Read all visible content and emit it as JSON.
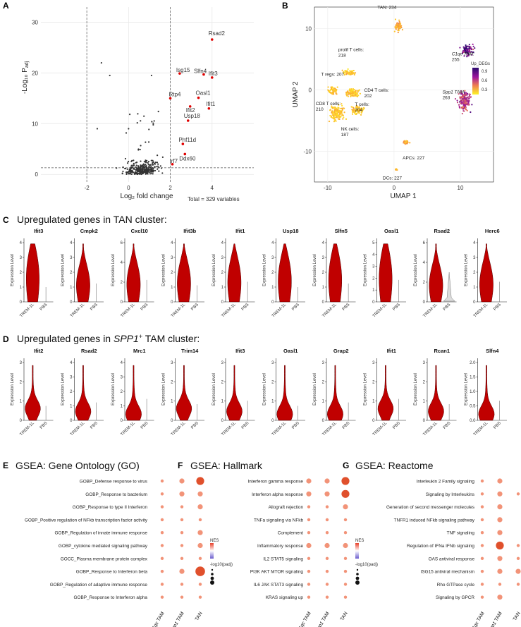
{
  "panels": {
    "A": {
      "label": "A",
      "total_note": "Total = 329 variables",
      "xlabel": "Log₂ fold change",
      "ylabel_main": "-Log₁₀ P",
      "ylabel_sub": "adj",
      "xticks": [
        "-2",
        "0",
        "2",
        "4"
      ],
      "yticks": [
        "0",
        "10",
        "20",
        "30"
      ],
      "genes": [
        {
          "name": "Rsad2",
          "x": 4.0,
          "y": 26.6
        },
        {
          "name": "Isg15",
          "x": 2.45,
          "y": 19.9
        },
        {
          "name": "Slfn4",
          "x": 3.6,
          "y": 19.7
        },
        {
          "name": "Ifit3",
          "x": 4.0,
          "y": 19.1
        },
        {
          "name": "Rtp4",
          "x": 2.0,
          "y": 15.0
        },
        {
          "name": "Oasl1",
          "x": 3.35,
          "y": 15.1
        },
        {
          "name": "Ifit2",
          "x": 2.95,
          "y": 13.4
        },
        {
          "name": "Ifit1",
          "x": 3.85,
          "y": 13.0
        },
        {
          "name": "Usp18",
          "x": 2.85,
          "y": 10.6
        },
        {
          "name": "Phf11d",
          "x": 2.6,
          "y": 6.0
        },
        {
          "name": "Ddx60",
          "x": 2.7,
          "y": 4.0
        },
        {
          "name": "Irf7",
          "x": 2.1,
          "y": 2.0
        }
      ]
    },
    "B": {
      "label": "B",
      "xlabel": "UMAP 1",
      "ylabel": "UMAP 2",
      "xticks": [
        "-10",
        "0",
        "10"
      ],
      "yticks": [
        "-10",
        "0",
        "10"
      ],
      "legend_title": "Up_DEGs",
      "legend_ticks": [
        "0.9",
        "0.6",
        "0.3"
      ],
      "clusters": [
        {
          "name": "TAN: 234"
        },
        {
          "name": "prolif T cells:\n218"
        },
        {
          "name": "T regs: 207"
        },
        {
          "name": "CD8 T cells:\n210"
        },
        {
          "name": "CD4 T cells:\n202"
        },
        {
          "name": "T cells:\n204"
        },
        {
          "name": "NK cells:\n187"
        },
        {
          "name": "C1qc TAM:\n255"
        },
        {
          "name": "Spp1 TAM:\n263"
        },
        {
          "name": "APCs: 227"
        },
        {
          "name": "DCs: 227"
        }
      ]
    },
    "C": {
      "label": "C",
      "title": "Upregulated genes in TAN cluster:",
      "ylabel": "Expression Level",
      "groups": [
        "TREM-1L",
        "PBS"
      ],
      "genes": [
        {
          "name": "Ifit3",
          "ymax": 4,
          "ticks": [
            "0",
            "1",
            "2",
            "3",
            "4"
          ]
        },
        {
          "name": "Cmpk2",
          "ymax": 4,
          "ticks": [
            "0",
            "1",
            "2",
            "3",
            "4"
          ]
        },
        {
          "name": "Cxcl10",
          "ymax": 6,
          "ticks": [
            "0",
            "2",
            "4",
            "6"
          ]
        },
        {
          "name": "Ifit3b",
          "ymax": 4,
          "ticks": [
            "0",
            "1",
            "2",
            "3",
            "4"
          ]
        },
        {
          "name": "Ifit1",
          "ymax": 4,
          "ticks": [
            "0",
            "1",
            "2",
            "3",
            "4"
          ]
        },
        {
          "name": "Usp18",
          "ymax": 4,
          "ticks": [
            "0",
            "1",
            "2",
            "3",
            "4"
          ]
        },
        {
          "name": "Slfn5",
          "ymax": 4,
          "ticks": [
            "0",
            "1",
            "2",
            "3",
            "4"
          ]
        },
        {
          "name": "Oasl1",
          "ymax": 5,
          "ticks": [
            "0",
            "1",
            "2",
            "3",
            "4",
            "5"
          ]
        },
        {
          "name": "Rsad2",
          "ymax": 6,
          "ticks": [
            "0",
            "2",
            "4",
            "6"
          ]
        },
        {
          "name": "Herc6",
          "ymax": 4,
          "ticks": [
            "0",
            "1",
            "2",
            "3",
            "4"
          ]
        }
      ]
    },
    "D": {
      "label": "D",
      "title_pre": "Upregulated genes in ",
      "title_gene": "SPP1",
      "title_sup": "+",
      "title_post": " TAM cluster:",
      "ylabel": "Expression Level",
      "groups": [
        "TREM-1L",
        "PBS"
      ],
      "genes": [
        {
          "name": "Ifit2",
          "ymax": 3,
          "ticks": [
            "0",
            "1",
            "2",
            "3"
          ]
        },
        {
          "name": "Rsad2",
          "ymax": 4,
          "ticks": [
            "0",
            "1",
            "2",
            "3",
            "4"
          ]
        },
        {
          "name": "Mrc1",
          "ymax": 4,
          "ticks": [
            "0",
            "1",
            "2",
            "3",
            "4"
          ]
        },
        {
          "name": "Trim14",
          "ymax": 3,
          "ticks": [
            "0",
            "1",
            "2",
            "3"
          ]
        },
        {
          "name": "Ifit3",
          "ymax": 3,
          "ticks": [
            "0",
            "1",
            "2",
            "3"
          ]
        },
        {
          "name": "Oasl1",
          "ymax": 3,
          "ticks": [
            "0",
            "1",
            "2",
            "3"
          ]
        },
        {
          "name": "Grap2",
          "ymax": 3,
          "ticks": [
            "0",
            "1",
            "2",
            "3"
          ]
        },
        {
          "name": "Ifit1",
          "ymax": 3,
          "ticks": [
            "0",
            "1",
            "2",
            "3"
          ]
        },
        {
          "name": "Rcan1",
          "ymax": 3,
          "ticks": [
            "0",
            "1",
            "2",
            "3"
          ]
        },
        {
          "name": "Slfn4",
          "ymax": 2,
          "ticks": [
            "0.0",
            "0.5",
            "1.0",
            "1.5",
            "2.0"
          ]
        }
      ]
    },
    "E": {
      "label": "E",
      "title": "GSEA: Gene Ontology (GO)",
      "columns": [
        "C1qc TAM",
        "Spp1 TAM",
        "TAN"
      ],
      "terms": [
        "GOBP_Defense response to virus",
        "GOBP_Response to bacterium",
        "GOBP_Response to type II Interferon",
        "GOBP_Positive regulation of NFkb transcription factor activity",
        "GOBP_Regulation of innate immune response",
        "GOBP_cytokine mediated signaling pathway",
        "GOCC_Plasma membrane protein complex",
        "GOBP_Response to Interferon beta",
        "GOBP_Regulation of adaptive immune response",
        "GOBP_Response to Interferon alpha"
      ],
      "sizes": [
        [
          1,
          2,
          4
        ],
        [
          1,
          2,
          2
        ],
        [
          1,
          1,
          2
        ],
        [
          1,
          1,
          1
        ],
        [
          1,
          1,
          2
        ],
        [
          1,
          1,
          2
        ],
        [
          1,
          1,
          1
        ],
        [
          1,
          2,
          5
        ],
        [
          1,
          1,
          1
        ],
        [
          1,
          1,
          1
        ]
      ],
      "legend_nes": "NES",
      "legend_p": "-log10(padj)"
    },
    "F": {
      "label": "F",
      "title": "GSEA: Hallmark",
      "columns": [
        "C1qc TAM",
        "Spp1 TAM",
        "TAN"
      ],
      "terms": [
        "Interferon gamma response",
        "Interferon alpha response",
        "Allograft rejection",
        "TNFa signaling via NFkb",
        "Complement",
        "Inflammatory response",
        "IL2 STAT5 signaling",
        "PI3K AKT MTOR signaling",
        "IL6 JAK STAT3 signaling",
        "KRAS signaling up"
      ],
      "sizes": [
        [
          2,
          2,
          4
        ],
        [
          2,
          2,
          4
        ],
        [
          1,
          1,
          2
        ],
        [
          1,
          1,
          1
        ],
        [
          1,
          1,
          1
        ],
        [
          2,
          2,
          2
        ],
        [
          1,
          1,
          1
        ],
        [
          1,
          1,
          1
        ],
        [
          1,
          1,
          1
        ],
        [
          1,
          1,
          1
        ]
      ],
      "legend_nes": "NES",
      "legend_p": "-log10(padj)"
    },
    "G": {
      "label": "G",
      "title": "GSEA: Reactome",
      "columns": [
        "C1qc TAM",
        "Spp1 TAM",
        "TAN"
      ],
      "terms": [
        "Interleukin 2 Family signaling",
        "Signaling by Interleukins",
        "Generation of second messenger molecules",
        "TNFR1 induced NFkb signaling pathway",
        "TNF signaling",
        "Regulation of IFNa IFNb signaling",
        "OAS antiviral response",
        "ISG15 antiviral mechanism",
        "Rho GTPase cycle",
        "Signaling by GPCR"
      ],
      "sizes": [
        [
          1,
          2,
          0
        ],
        [
          1,
          2,
          1
        ],
        [
          1,
          2,
          0
        ],
        [
          1,
          2,
          0
        ],
        [
          1,
          2,
          0
        ],
        [
          1,
          4,
          1
        ],
        [
          1,
          2,
          1
        ],
        [
          1,
          2,
          2
        ],
        [
          1,
          1,
          1
        ],
        [
          1,
          2,
          0
        ]
      ],
      "legend_nes": "NES",
      "legend_p": "-log10(padj)"
    }
  },
  "colors": {
    "violin": "#c00000",
    "violin_pbs": "#aaaaaa",
    "dot": "#f08060",
    "dot_dark": "#e0502c"
  }
}
